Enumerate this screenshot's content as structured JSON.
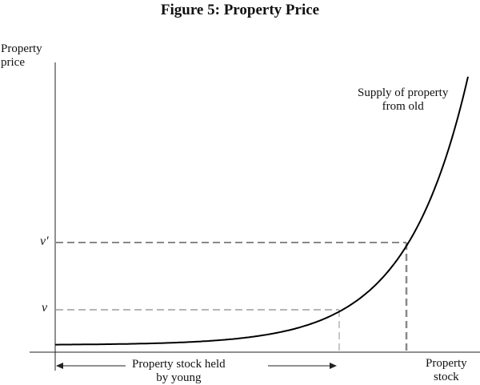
{
  "title": "Figure 5: Property Price",
  "y_axis_label": [
    "Property",
    "price"
  ],
  "x_axis_label": [
    "Property",
    "stock"
  ],
  "curve_label": [
    "Supply of property",
    "from old"
  ],
  "levels": {
    "v": "v",
    "v_prime": "v′"
  },
  "arrow_label": [
    "Property stock held",
    "by young"
  ]
}
